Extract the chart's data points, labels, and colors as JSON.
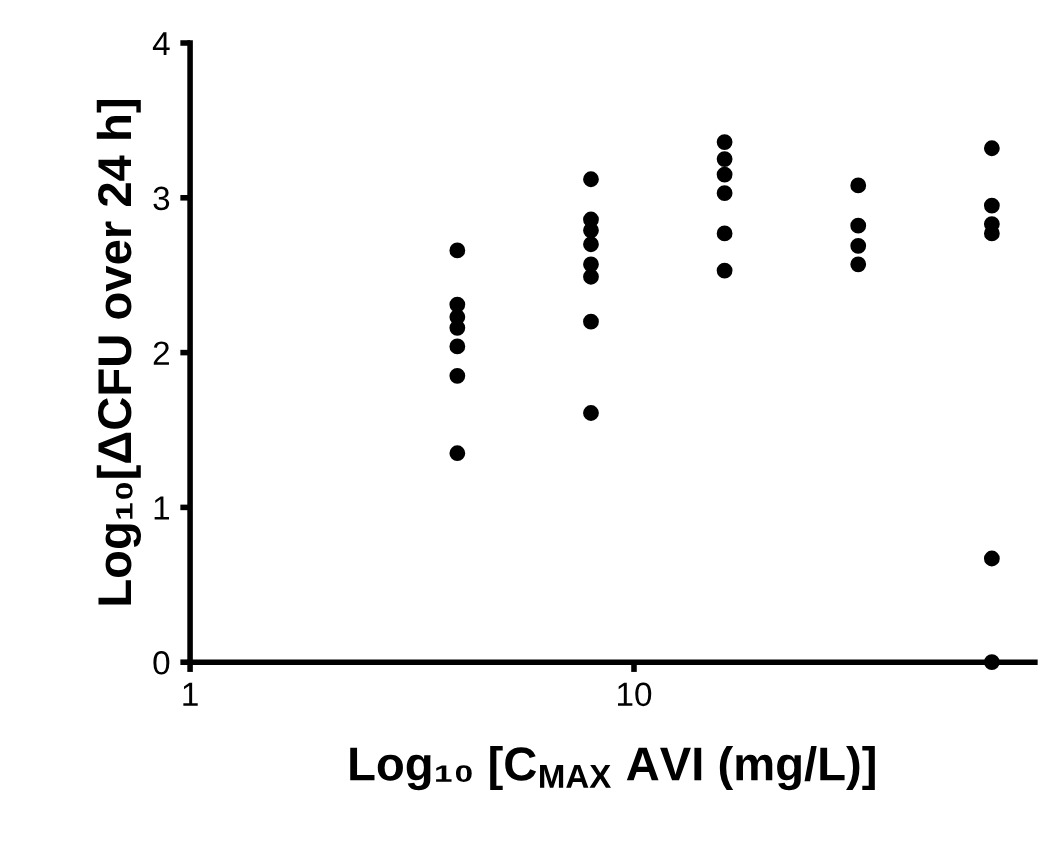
{
  "chart_data": {
    "type": "scatter",
    "xlabel": "Log₁₀ [C$_{MAX}$ AVI (mg/L)]",
    "ylabel": "Log₁₀[ΔCFU over 24 h]",
    "log": "x",
    "xlim": [
      1,
      80
    ],
    "xticks": [
      1,
      10
    ],
    "ylim": [
      0,
      4
    ],
    "yticks": [
      0,
      1,
      2,
      3,
      4
    ],
    "grid": false,
    "marker": "circle",
    "series": [
      {
        "color": "#000000",
        "x": [
          4,
          4,
          4,
          4,
          4,
          4,
          4,
          8,
          8,
          8,
          8,
          8,
          8,
          8,
          8,
          16,
          16,
          16,
          16,
          16,
          16,
          32,
          32,
          32,
          32,
          64,
          64,
          64,
          64,
          64,
          64
        ],
        "values": [
          2.66,
          2.31,
          2.23,
          2.16,
          2.04,
          1.85,
          1.35,
          3.12,
          2.86,
          2.79,
          2.7,
          2.57,
          2.49,
          2.2,
          1.61,
          3.36,
          3.25,
          3.15,
          3.03,
          2.77,
          2.53,
          3.08,
          2.82,
          2.69,
          2.57,
          3.32,
          2.95,
          2.83,
          2.77,
          0.67,
          0
        ]
      }
    ]
  }
}
